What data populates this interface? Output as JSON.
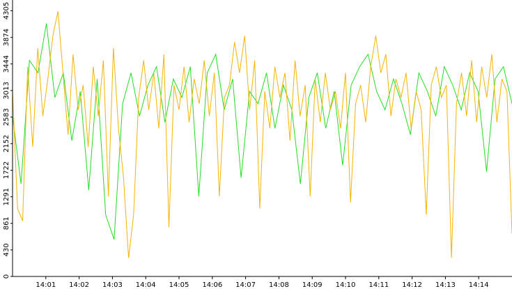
{
  "chart_data": {
    "type": "line",
    "xlim": [
      0,
      15
    ],
    "xticks": [
      {
        "value": 1,
        "label": "14:01"
      },
      {
        "value": 2,
        "label": "14:02"
      },
      {
        "value": 3,
        "label": "14:03"
      },
      {
        "value": 4,
        "label": "14:04"
      },
      {
        "value": 5,
        "label": "14:05"
      },
      {
        "value": 6,
        "label": "14:06"
      },
      {
        "value": 7,
        "label": "14:07"
      },
      {
        "value": 8,
        "label": "14:08"
      },
      {
        "value": 9,
        "label": "14:09"
      },
      {
        "value": 10,
        "label": "14:10"
      },
      {
        "value": 11,
        "label": "14:11"
      },
      {
        "value": 12,
        "label": "14:12"
      },
      {
        "value": 13,
        "label": "14:13"
      },
      {
        "value": 14,
        "label": "14:14"
      }
    ],
    "ylim": [
      0,
      4480
    ],
    "yticks": [
      0,
      430,
      861,
      1291,
      1722,
      2152,
      2583,
      3013,
      3444,
      3874,
      4305
    ],
    "series": [
      {
        "color": "#22dd22",
        "values": [
          2600,
          1500,
          3500,
          3300,
          4100,
          2900,
          3300,
          2200,
          3000,
          1400,
          3200,
          1000,
          600,
          2800,
          3300,
          2600,
          3100,
          3400,
          2500,
          3200,
          2900,
          3400,
          1300,
          3300,
          3600,
          2700,
          3200,
          1600,
          3000,
          2800,
          3300,
          2400,
          3100,
          2700,
          1500,
          2900,
          3300,
          2400,
          3000,
          1800,
          3100,
          3400,
          3600,
          3000,
          2700,
          3200,
          2800,
          2300,
          3300,
          3000,
          2600,
          3400,
          3100,
          2700,
          3300,
          3000,
          1700,
          3200,
          3400,
          2800
        ]
      },
      {
        "color": "#f5b400",
        "values": [
          3000,
          1100,
          900,
          3400,
          2100,
          3700,
          2600,
          3200,
          3900,
          4300,
          3300,
          2300,
          3600,
          2700,
          3100,
          2100,
          3400,
          2600,
          3500,
          1300,
          3700,
          2400,
          1600,
          300,
          1000,
          2900,
          3500,
          2700,
          3300,
          2400,
          3600,
          800,
          3100,
          2700,
          3400,
          2500,
          3200,
          2800,
          3500,
          2600,
          3300,
          1300,
          2900,
          3100,
          3800,
          3300,
          3900,
          2700,
          3500,
          1100,
          3000,
          2400,
          3400,
          2900,
          3300,
          2200,
          3500,
          2600,
          3100,
          1300,
          3200,
          2500,
          3300,
          2700,
          3000,
          2400,
          3300,
          1200,
          2800,
          3100,
          2500,
          3400,
          3900,
          3300,
          3600,
          2600,
          3200,
          2900,
          3300,
          2400,
          3000,
          2700,
          1000,
          3100,
          3400,
          2900,
          3100,
          300,
          2800,
          3300,
          2600,
          3500,
          2500,
          3400,
          2900,
          3600,
          2500,
          3200,
          3000,
          700
        ]
      }
    ]
  }
}
